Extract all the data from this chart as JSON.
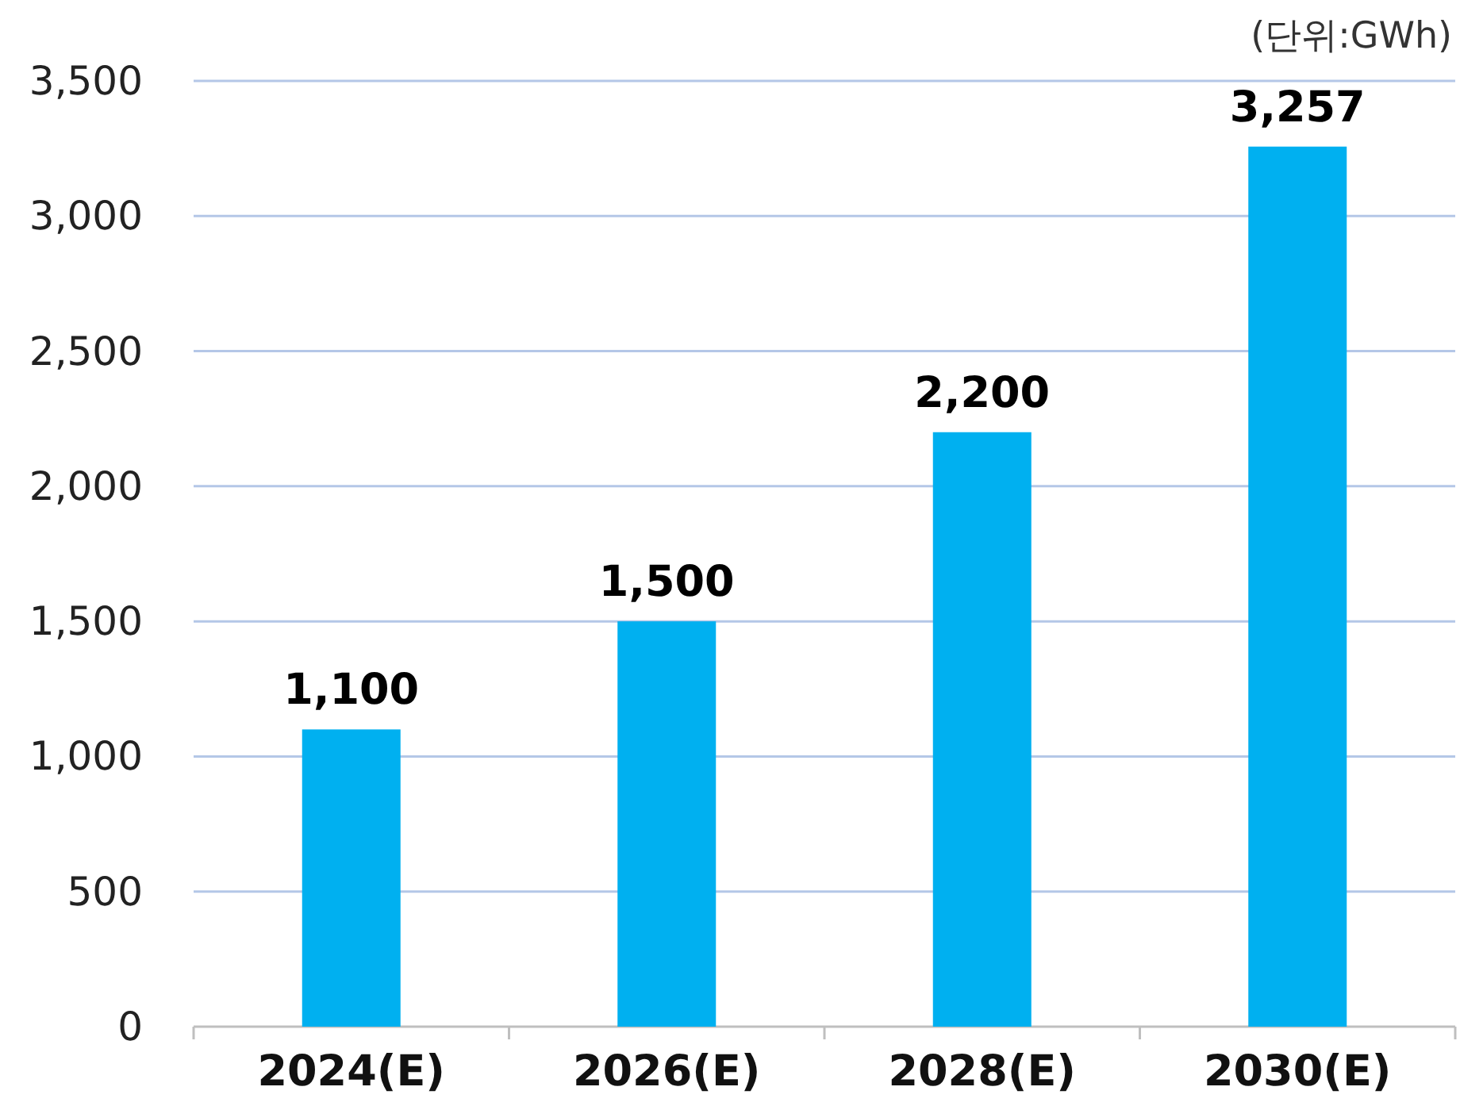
{
  "chart_data": {
    "type": "bar",
    "categories": [
      "2024(E)",
      "2026(E)",
      "2028(E)",
      "2030(E)"
    ],
    "values": [
      1100,
      1500,
      2200,
      3257
    ],
    "value_labels": [
      "1,100",
      "1,500",
      "2,200",
      "3,257"
    ],
    "color": "#00b0f0",
    "ylim": [
      0,
      3500
    ],
    "yticks": [
      0,
      500,
      {
        "value": 1000,
        "label": "1,000"
      },
      {
        "value": 1500,
        "label": "1,500"
      },
      {
        "value": 2000,
        "label": "2,000"
      },
      {
        "value": 2500,
        "label": "2,500"
      },
      {
        "value": 3000,
        "label": "3,000"
      },
      {
        "value": 3500,
        "label": "3,500"
      }
    ],
    "grid": "y",
    "annotations": [
      "(단위:GWh)"
    ]
  }
}
